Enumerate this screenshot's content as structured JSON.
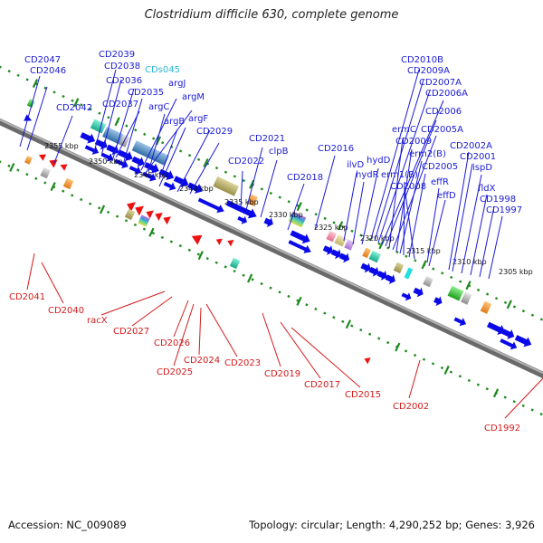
{
  "title": "Clostridium difficile 630, complete genome",
  "footer": {
    "accession": "Accession: NC_009089",
    "summary": "Topology: circular; Length: 4,290,252 bp; Genes: 3,926"
  },
  "colors": {
    "forward_label": "#1a1ad6",
    "reverse_label": "#d41a1a",
    "rna_label": "#2bb8d8",
    "forward_arrow": "#0a0ae8",
    "reverse_arrow": "#ee1111",
    "backbone": "#8a8a8a",
    "ticks": "#1e8a1e"
  },
  "kbp_labels": [
    "2355 kbp",
    "2350 kbp",
    "2345 kbp",
    "2340 kbp",
    "2335 kbp",
    "2330 kbp",
    "2325 kbp",
    "2320 kbp",
    "2315 kbp",
    "2310 kbp",
    "2305 kbp"
  ],
  "forward_genes": [
    "CD2047",
    "CD2046",
    "CD2039",
    "CD2038",
    "CDs045",
    "CD2036",
    "argJ",
    "CD2035",
    "argM",
    "CD2037",
    "CD2042",
    "argC",
    "argB",
    "argF",
    "CD2029",
    "CD2021",
    "clpB",
    "CD2022",
    "CD2018",
    "CD2016",
    "CD2010B",
    "CD2009A",
    "CD2007A",
    "CD2006A",
    "CD2006",
    "ermC",
    "CD2005A",
    "CD2009",
    "erm2(B)",
    "hydD",
    "ilvD",
    "hydR",
    "erm1(B)",
    "CD2005",
    "CD2008",
    "effR",
    "effD",
    "CD2002A",
    "CD2001",
    "ispD",
    "fldX",
    "CD1998",
    "CD1997"
  ],
  "reverse_genes": [
    "CD2041",
    "CD2040",
    "racX",
    "CD2027",
    "CD2026",
    "CD2025",
    "CD2024",
    "CD2023",
    "CD2019",
    "CD2017",
    "CD2015",
    "CD2002",
    "CD1992"
  ]
}
